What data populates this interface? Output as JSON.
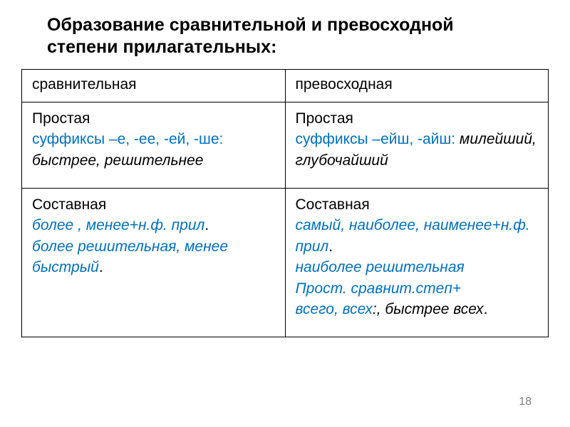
{
  "colors": {
    "text": "#000000",
    "accent_blue": "#0070c0",
    "border": "#000000",
    "page_num": "#808080",
    "background": "#ffffff"
  },
  "typography": {
    "title_fontsize_pt": 19,
    "body_fontsize_pt": 16,
    "font_family": "Arial"
  },
  "title": "Образование сравнительной и превосходной степени прилагательных:",
  "table": {
    "columns": 2,
    "header": {
      "c0": "сравнительная",
      "c1": "превосходная"
    },
    "row_simple": {
      "c0": {
        "l1": "Простая",
        "l2": "суффиксы –е, -ее, -ей, -ше:",
        "l3": " быстрее, решительнее"
      },
      "c1": {
        "l1": "Простая",
        "l2": "суффиксы –ейш, -айш:",
        "l2b": " милейший, глубочайший"
      }
    },
    "row_compound": {
      "c0": {
        "l1": "Составная",
        "l2a": "более , менее+н.ф. прил",
        "l2b": ".",
        "l3a": " более решительная, менее быстрый",
        "l3b": "."
      },
      "c1": {
        "l1": "Составная",
        "l2": "самый, наиболее, наименее+н.ф. прил",
        "l2b": ".",
        "l3": "наиболее решительная",
        "l4": "Прост. сравнит.степ+",
        "l5a": " всего, всех",
        "l5b": ":, быстрее всех",
        "l5c": "."
      }
    }
  },
  "page_number": "18"
}
